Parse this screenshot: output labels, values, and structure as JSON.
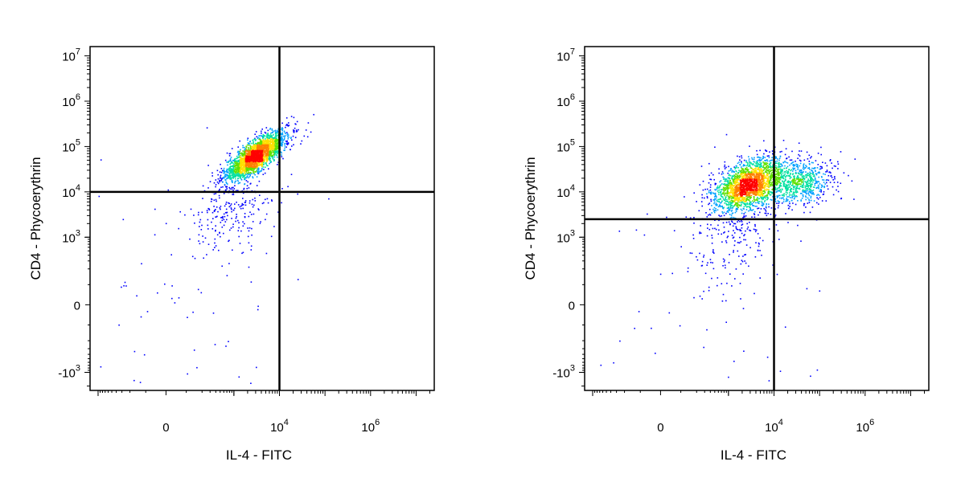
{
  "chart_data": [
    {
      "type": "scatter",
      "xlabel": "IL-4 - FITC",
      "ylabel": "CD4 - Phycoerythrin",
      "xscale": "biexponential",
      "yscale": "biexponential",
      "x_ticks": [
        {
          "value": 0,
          "base": "0",
          "exp": ""
        },
        {
          "value": 10000,
          "base": "10",
          "exp": "4"
        },
        {
          "value": 1000000,
          "base": "10",
          "exp": "6"
        }
      ],
      "y_ticks": [
        {
          "value": -1000,
          "base": "-10",
          "exp": "3"
        },
        {
          "value": 0,
          "base": "0",
          "exp": ""
        },
        {
          "value": 1000,
          "base": "10",
          "exp": "3"
        },
        {
          "value": 10000,
          "base": "10",
          "exp": "4"
        },
        {
          "value": 100000,
          "base": "10",
          "exp": "5"
        },
        {
          "value": 1000000,
          "base": "10",
          "exp": "6"
        },
        {
          "value": 10000000,
          "base": "10",
          "exp": "7"
        }
      ],
      "quadrant_gate": {
        "x": 10000,
        "y": 10000
      },
      "populations": [
        {
          "x": 3000,
          "y": 65000,
          "x_spread": 0.25,
          "y_spread": 0.2,
          "corr": 0.78,
          "count": 2400
        },
        {
          "x": 800,
          "y": 4000,
          "x_spread": 0.35,
          "y_spread": 0.35,
          "corr": 0.3,
          "count": 240
        },
        {
          "x": 200,
          "y": 150,
          "x_spread": 0.9,
          "y_spread": 1.2,
          "corr": 0.2,
          "count": 70
        }
      ],
      "colormap": [
        "#0000ff",
        "#00a0ff",
        "#00e0a0",
        "#60e000",
        "#ffe000",
        "#ff8000",
        "#ff0000"
      ]
    },
    {
      "type": "scatter",
      "xlabel": "IL-4 - FITC",
      "ylabel": "CD4 - Phycoerythrin",
      "xscale": "biexponential",
      "yscale": "biexponential",
      "x_ticks": [
        {
          "value": 0,
          "base": "0",
          "exp": ""
        },
        {
          "value": 10000,
          "base": "10",
          "exp": "4"
        },
        {
          "value": 1000000,
          "base": "10",
          "exp": "6"
        }
      ],
      "y_ticks": [
        {
          "value": -1000,
          "base": "-10",
          "exp": "3"
        },
        {
          "value": 0,
          "base": "0",
          "exp": ""
        },
        {
          "value": 1000,
          "base": "10",
          "exp": "3"
        },
        {
          "value": 10000,
          "base": "10",
          "exp": "4"
        },
        {
          "value": 100000,
          "base": "10",
          "exp": "5"
        },
        {
          "value": 1000000,
          "base": "10",
          "exp": "6"
        },
        {
          "value": 10000000,
          "base": "10",
          "exp": "7"
        }
      ],
      "quadrant_gate": {
        "x": 10000,
        "y": 2500
      },
      "populations": [
        {
          "x": 2800,
          "y": 15000,
          "x_spread": 0.3,
          "y_spread": 0.22,
          "corr": 0.45,
          "count": 2100
        },
        {
          "x": 35000,
          "y": 17000,
          "x_spread": 0.28,
          "y_spread": 0.18,
          "corr": 0.1,
          "count": 700
        },
        {
          "x": 1500,
          "y": 1200,
          "x_spread": 0.4,
          "y_spread": 0.4,
          "corr": 0.2,
          "count": 220
        },
        {
          "x": 300,
          "y": 100,
          "x_spread": 0.8,
          "y_spread": 1.2,
          "corr": 0.1,
          "count": 70
        }
      ],
      "colormap": [
        "#0000ff",
        "#00a0ff",
        "#00e0a0",
        "#60e000",
        "#ffe000",
        "#ff8000",
        "#ff0000"
      ]
    }
  ]
}
